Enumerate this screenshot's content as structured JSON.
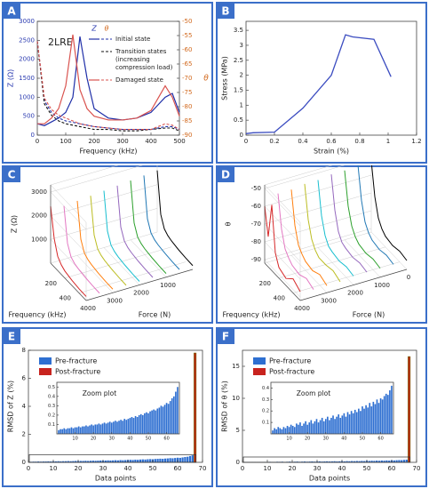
{
  "chart_data": [
    {
      "type": "line",
      "panel": "A",
      "annotation": "2LRE",
      "xlabel": "Frequency (kHz)",
      "ylabel": "Z (Ω)",
      "y2label": "θ",
      "ycolor": "#2a3ab0",
      "y2color": "#d2691e",
      "legend_z": "Z",
      "legend_theta": "θ",
      "x": [
        0,
        25,
        50,
        75,
        100,
        125,
        150,
        175,
        200,
        250,
        300,
        350,
        400,
        450,
        475,
        500
      ],
      "xlim": [
        0,
        500
      ],
      "xticks": [
        0,
        100,
        200,
        300,
        400,
        500
      ],
      "ylim": [
        0,
        3000
      ],
      "yticks": [
        0,
        500,
        1000,
        1500,
        2000,
        2500,
        3000
      ],
      "y2lim": [
        -90,
        -50
      ],
      "y2ticks": [
        -90,
        -85,
        -80,
        -75,
        -70,
        -65,
        -60,
        -55,
        -50
      ],
      "states": [
        {
          "name": [
            "Initial state"
          ],
          "color": "#1f2fa8",
          "values": [
            300,
            250,
            350,
            450,
            600,
            1000,
            2600,
            1500,
            700,
            450,
            400,
            450,
            600,
            1000,
            1100,
            600
          ],
          "theta": [
            -57,
            -78,
            -82,
            -84,
            -85,
            -85.5,
            -86,
            -86.5,
            -87,
            -87.5,
            -88,
            -88,
            -88,
            -87,
            -87,
            -88
          ]
        },
        {
          "name": [
            "Transition states",
            "(increasing",
            "compression load)"
          ],
          "color": "#111111",
          "theta": [
            -57,
            -79,
            -83,
            -85,
            -86,
            -86.5,
            -87,
            -87.5,
            -88,
            -88,
            -88.5,
            -88.5,
            -88,
            -87.5,
            -87.5,
            -88.5
          ]
        },
        {
          "name": [
            "Damaged state"
          ],
          "color": "#d9534f",
          "values": [
            300,
            300,
            450,
            700,
            1300,
            2650,
            1200,
            700,
            500,
            400,
            400,
            450,
            650,
            1300,
            1000,
            500
          ],
          "theta": [
            -57,
            -77,
            -81,
            -83,
            -84,
            -85,
            -86,
            -86.5,
            -87,
            -87.5,
            -88,
            -88,
            -88,
            -86,
            -86.5,
            -88
          ]
        }
      ]
    },
    {
      "type": "line",
      "panel": "B",
      "xlabel": "Strain (%)",
      "ylabel": "Stress (MPa)",
      "color": "#3b4cc0",
      "x": [
        0,
        0.05,
        0.2,
        0.4,
        0.6,
        0.7,
        0.75,
        0.9,
        1.02
      ],
      "values": [
        0.05,
        0.08,
        0.1,
        0.9,
        2.0,
        3.35,
        3.28,
        3.2,
        1.95
      ],
      "xlim": [
        0,
        1.2
      ],
      "xticks": [
        0,
        0.2,
        0.4,
        0.6,
        0.8,
        1,
        1.2
      ],
      "ylim": [
        0,
        3.8
      ],
      "yticks": [
        0,
        0.5,
        1,
        1.5,
        2,
        2.5,
        3,
        3.5
      ]
    },
    {
      "type": "waterfall",
      "panel": "C",
      "xlabel": "Frequency (kHz)",
      "ylabel": "Force (N)",
      "zlabel": "Z (Ω)",
      "x": [
        0,
        50,
        100,
        150,
        200,
        300,
        400,
        500
      ],
      "xlim": [
        0,
        500
      ],
      "xticks": [
        200,
        400
      ],
      "ylim": [
        0,
        4000
      ],
      "yticks": [
        1000,
        2000,
        3000,
        4000
      ],
      "zlim": [
        0,
        3300
      ],
      "zticks": [
        1000,
        2000,
        3000
      ],
      "series": [
        {
          "force": 0,
          "color": "#000000",
          "values": [
            2600,
            900,
            450,
            320,
            260,
            200,
            170,
            160
          ]
        },
        {
          "force": 500,
          "color": "#1f77b4",
          "values": [
            2550,
            880,
            440,
            310,
            255,
            200,
            170,
            160
          ]
        },
        {
          "force": 1000,
          "color": "#2ca02c",
          "values": [
            2500,
            870,
            430,
            310,
            250,
            195,
            165,
            155
          ]
        },
        {
          "force": 1500,
          "color": "#9467bd",
          "values": [
            2450,
            860,
            430,
            305,
            250,
            195,
            165,
            155
          ]
        },
        {
          "force": 2000,
          "color": "#17becf",
          "values": [
            2400,
            850,
            420,
            300,
            245,
            190,
            160,
            150
          ]
        },
        {
          "force": 2500,
          "color": "#bcbd22",
          "values": [
            2350,
            850,
            420,
            300,
            245,
            190,
            160,
            150
          ]
        },
        {
          "force": 3000,
          "color": "#ff7f0e",
          "values": [
            2300,
            840,
            410,
            295,
            240,
            185,
            155,
            150
          ]
        },
        {
          "force": 3500,
          "color": "#e377c2",
          "values": [
            2250,
            830,
            410,
            290,
            240,
            185,
            155,
            145
          ]
        },
        {
          "force": 4000,
          "color": "#d62728",
          "values": [
            2400,
            1200,
            600,
            400,
            300,
            220,
            180,
            170
          ]
        }
      ]
    },
    {
      "type": "waterfall",
      "panel": "D",
      "xlabel": "Frequency (kHz)",
      "ylabel": "Force (N)",
      "zlabel": "θ",
      "x": [
        0,
        50,
        100,
        150,
        200,
        300,
        400,
        500
      ],
      "xlim": [
        0,
        500
      ],
      "xticks": [
        200,
        400
      ],
      "ylim": [
        0,
        4000
      ],
      "yticks": [
        0,
        1000,
        2000,
        3000,
        4000
      ],
      "zlim": [
        -92,
        -48
      ],
      "zticks": [
        -90,
        -80,
        -70,
        -60,
        -50
      ],
      "series": [
        {
          "force": 0,
          "color": "#000000",
          "values": [
            -52,
            -70,
            -80,
            -84,
            -86,
            -87,
            -86,
            -87
          ]
        },
        {
          "force": 500,
          "color": "#1f77b4",
          "values": [
            -52,
            -70,
            -80,
            -84,
            -86,
            -87,
            -86,
            -87
          ]
        },
        {
          "force": 1000,
          "color": "#2ca02c",
          "values": [
            -53,
            -71,
            -80,
            -84,
            -86,
            -87,
            -86,
            -87
          ]
        },
        {
          "force": 1500,
          "color": "#9467bd",
          "values": [
            -53,
            -71,
            -81,
            -85,
            -86,
            -87,
            -86,
            -87
          ]
        },
        {
          "force": 2000,
          "color": "#17becf",
          "values": [
            -54,
            -72,
            -81,
            -85,
            -86,
            -87,
            -86,
            -87
          ]
        },
        {
          "force": 2500,
          "color": "#bcbd22",
          "values": [
            -54,
            -72,
            -81,
            -85,
            -87,
            -87,
            -86,
            -88
          ]
        },
        {
          "force": 3000,
          "color": "#ff7f0e",
          "values": [
            -55,
            -73,
            -82,
            -85,
            -87,
            -88,
            -86,
            -88
          ]
        },
        {
          "force": 3500,
          "color": "#e377c2",
          "values": [
            -55,
            -73,
            -82,
            -85,
            -87,
            -88,
            -86,
            -88
          ]
        },
        {
          "force": 4000,
          "color": "#d62728",
          "values": [
            -60,
            -75,
            -55,
            -80,
            -86,
            -88,
            -84,
            -87
          ]
        }
      ]
    },
    {
      "type": "bar",
      "panel": "E",
      "xlabel": "Data points",
      "ylabel": "RMSD of Z (%)",
      "xlim": [
        0,
        70
      ],
      "xticks": [
        0,
        10,
        20,
        30,
        40,
        50,
        60,
        70
      ],
      "ylim": [
        0,
        8
      ],
      "yticks": [
        0,
        2,
        4,
        6,
        8
      ],
      "series": [
        {
          "name": "Pre-fracture",
          "color": "#2e6fd1",
          "x": [
            1,
            2,
            3,
            4,
            5,
            6,
            7,
            8,
            9,
            10,
            11,
            12,
            13,
            14,
            15,
            16,
            17,
            18,
            19,
            20,
            21,
            22,
            23,
            24,
            25,
            26,
            27,
            28,
            29,
            30,
            31,
            32,
            33,
            34,
            35,
            36,
            37,
            38,
            39,
            40,
            41,
            42,
            43,
            44,
            45,
            46,
            47,
            48,
            49,
            50,
            51,
            52,
            53,
            54,
            55,
            56,
            57,
            58,
            59,
            60,
            61,
            62,
            63,
            64,
            65,
            66
          ],
          "values": [
            0.04,
            0.05,
            0.05,
            0.06,
            0.05,
            0.06,
            0.06,
            0.07,
            0.06,
            0.07,
            0.07,
            0.08,
            0.07,
            0.08,
            0.08,
            0.09,
            0.08,
            0.09,
            0.1,
            0.09,
            0.1,
            0.1,
            0.11,
            0.1,
            0.11,
            0.12,
            0.11,
            0.12,
            0.13,
            0.12,
            0.13,
            0.14,
            0.13,
            0.14,
            0.15,
            0.14,
            0.16,
            0.15,
            0.16,
            0.17,
            0.18,
            0.17,
            0.19,
            0.18,
            0.2,
            0.21,
            0.2,
            0.22,
            0.23,
            0.22,
            0.24,
            0.25,
            0.26,
            0.25,
            0.27,
            0.28,
            0.3,
            0.29,
            0.31,
            0.33,
            0.32,
            0.35,
            0.38,
            0.4,
            0.45,
            0.5
          ]
        },
        {
          "name": "Post-fracture",
          "color": "#c8231e",
          "x": [
            67
          ],
          "values": [
            7.8
          ]
        }
      ],
      "inset": {
        "title": "Zoom plot",
        "xlim": [
          0,
          67
        ],
        "xticks": [
          10,
          20,
          30,
          40,
          50,
          60
        ],
        "ylim": [
          0,
          0.55
        ],
        "yticks": [
          0.1,
          0.2,
          0.3,
          0.4,
          0.5
        ]
      }
    },
    {
      "type": "bar",
      "panel": "F",
      "xlabel": "Data points",
      "ylabel": "RMSD of θ (%)",
      "xlim": [
        0,
        70
      ],
      "xticks": [
        0,
        10,
        20,
        30,
        40,
        50,
        60,
        70
      ],
      "ylim": [
        0,
        17.5
      ],
      "yticks": [
        0,
        5,
        10,
        15
      ],
      "series": [
        {
          "name": "Pre-fracture",
          "color": "#2e6fd1",
          "x": [
            1,
            2,
            3,
            4,
            5,
            6,
            7,
            8,
            9,
            10,
            11,
            12,
            13,
            14,
            15,
            16,
            17,
            18,
            19,
            20,
            21,
            22,
            23,
            24,
            25,
            26,
            27,
            28,
            29,
            30,
            31,
            32,
            33,
            34,
            35,
            36,
            37,
            38,
            39,
            40,
            41,
            42,
            43,
            44,
            45,
            46,
            47,
            48,
            49,
            50,
            51,
            52,
            53,
            54,
            55,
            56,
            57,
            58,
            59,
            60,
            61,
            62,
            63,
            64,
            65,
            66
          ],
          "values": [
            0.03,
            0.05,
            0.04,
            0.06,
            0.05,
            0.04,
            0.06,
            0.05,
            0.07,
            0.06,
            0.08,
            0.07,
            0.06,
            0.09,
            0.08,
            0.1,
            0.07,
            0.09,
            0.11,
            0.08,
            0.1,
            0.12,
            0.09,
            0.11,
            0.13,
            0.1,
            0.12,
            0.14,
            0.11,
            0.13,
            0.15,
            0.12,
            0.14,
            0.16,
            0.13,
            0.15,
            0.17,
            0.14,
            0.16,
            0.18,
            0.15,
            0.19,
            0.17,
            0.2,
            0.18,
            0.21,
            0.19,
            0.22,
            0.2,
            0.24,
            0.22,
            0.25,
            0.23,
            0.27,
            0.24,
            0.28,
            0.26,
            0.3,
            0.27,
            0.31,
            0.3,
            0.33,
            0.35,
            0.34,
            0.38,
            0.42
          ]
        },
        {
          "name": "Post-fracture",
          "color": "#c8231e",
          "x": [
            67
          ],
          "values": [
            16.5
          ]
        }
      ],
      "inset": {
        "title": "Zoom plot",
        "xlim": [
          0,
          67
        ],
        "xticks": [
          10,
          20,
          30,
          40,
          50,
          60
        ],
        "ylim": [
          0,
          0.45
        ],
        "yticks": [
          0.1,
          0.2,
          0.3,
          0.4
        ]
      }
    }
  ]
}
